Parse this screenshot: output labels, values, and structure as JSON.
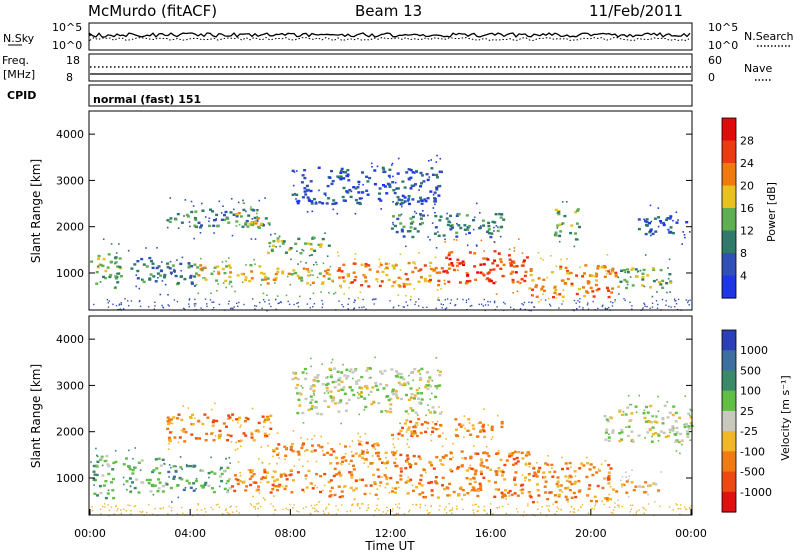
{
  "header": {
    "title": "McMurdo (fitACF)",
    "beam": "Beam 13",
    "date": "11/Feb/2011"
  },
  "top_panels": {
    "nsky": {
      "label": "N.Sky",
      "tick_top": "10^5",
      "tick_bottom": "10^0"
    },
    "nsearch": {
      "label": "N.Search",
      "tick_top": "10^5",
      "tick_bottom": "10^0"
    },
    "freq": {
      "label": "Freq.",
      "unit": "[MHz]",
      "tick_top": "18",
      "tick_bottom": "8"
    },
    "nave": {
      "label": "Nave",
      "tick_top": "60",
      "tick_bottom": "0"
    },
    "cpid": {
      "label": "CPID",
      "value": "normal (fast) 151"
    }
  },
  "chart_data": [
    {
      "type": "heatmap",
      "name": "power",
      "ylabel": "Slant Range [km]",
      "ylim": [
        200,
        4500
      ],
      "yticks": [
        "1000",
        "2000",
        "3000",
        "4000"
      ],
      "xlim": [
        0,
        24
      ],
      "colorbar": {
        "label": "Power [dB]",
        "ticks": [
          "4",
          "8",
          "12",
          "16",
          "20",
          "24",
          "28"
        ],
        "colors": [
          "#1e36e6",
          "#3050b8",
          "#2f7a6a",
          "#5fae52",
          "#e8c020",
          "#f07a10",
          "#ec3a12",
          "#e00a0a"
        ]
      },
      "bands": [
        {
          "t0": 0.0,
          "t1": 1.2,
          "r0": 700,
          "r1": 1500,
          "level": 3
        },
        {
          "t0": 1.5,
          "t1": 4.2,
          "r0": 780,
          "r1": 1350,
          "level": 2
        },
        {
          "t0": 4.2,
          "t1": 7.0,
          "r0": 800,
          "r1": 1200,
          "level": 4
        },
        {
          "t0": 7.0,
          "t1": 9.8,
          "r0": 760,
          "r1": 1120,
          "level": 4
        },
        {
          "t0": 9.8,
          "t1": 14.0,
          "r0": 700,
          "r1": 1250,
          "level": 5
        },
        {
          "t0": 14.0,
          "t1": 17.5,
          "r0": 780,
          "r1": 1500,
          "level": 6
        },
        {
          "t0": 17.5,
          "t1": 21.0,
          "r0": 500,
          "r1": 1200,
          "level": 5
        },
        {
          "t0": 21.0,
          "t1": 23.2,
          "r0": 700,
          "r1": 1150,
          "level": 3
        },
        {
          "t0": 3.0,
          "t1": 7.2,
          "r0": 2000,
          "r1": 2400,
          "level": 2
        },
        {
          "t0": 5.8,
          "t1": 6.9,
          "r0": 1950,
          "r1": 2350,
          "level": 4
        },
        {
          "t0": 7.0,
          "t1": 9.5,
          "r0": 1450,
          "r1": 1800,
          "level": 3
        },
        {
          "t0": 8.0,
          "t1": 14.0,
          "r0": 2500,
          "r1": 3300,
          "level": 1
        },
        {
          "t0": 12.0,
          "t1": 16.5,
          "r0": 1800,
          "r1": 2300,
          "level": 2
        },
        {
          "t0": 18.5,
          "t1": 19.5,
          "r0": 1750,
          "r1": 2400,
          "level": 3
        },
        {
          "t0": 21.8,
          "t1": 24.0,
          "r0": 1850,
          "r1": 2250,
          "level": 1
        }
      ]
    },
    {
      "type": "heatmap",
      "name": "velocity",
      "ylabel": "Slant Range [km]",
      "ylim": [
        200,
        4500
      ],
      "yticks": [
        "1000",
        "2000",
        "3000",
        "4000"
      ],
      "xlim": [
        0,
        24
      ],
      "xticks": [
        "00:00",
        "04:00",
        "08:00",
        "12:00",
        "16:00",
        "20:00",
        "00:00"
      ],
      "xlabel": "Time UT",
      "colorbar": {
        "label": "Velocity [m s⁻¹]",
        "ticks": [
          "1000",
          "500",
          "100",
          "25",
          "-25",
          "-100",
          "-500",
          "-1000"
        ],
        "colors": [
          "#2a3fb8",
          "#3f6ea0",
          "#3a8a6a",
          "#62bf45",
          "#c8c8be",
          "#f2b62a",
          "#f07a14",
          "#ec4a12",
          "#e01010"
        ]
      },
      "bands": [
        {
          "t0": 0.0,
          "t1": 1.0,
          "r0": 500,
          "r1": 1500,
          "level": 3
        },
        {
          "t0": 1.3,
          "t1": 3.0,
          "r0": 700,
          "r1": 1450,
          "level": 3
        },
        {
          "t0": 3.0,
          "t1": 4.2,
          "r0": 700,
          "r1": 1300,
          "level": 2
        },
        {
          "t0": 4.2,
          "t1": 5.6,
          "r0": 720,
          "r1": 1250,
          "level": 3
        },
        {
          "t0": 5.6,
          "t1": 9.5,
          "r0": 700,
          "r1": 1200,
          "level": 6
        },
        {
          "t0": 9.5,
          "t1": 17.5,
          "r0": 600,
          "r1": 1600,
          "level": 6
        },
        {
          "t0": 17.5,
          "t1": 20.8,
          "r0": 500,
          "r1": 1350,
          "level": 6
        },
        {
          "t0": 20.8,
          "t1": 22.8,
          "r0": 700,
          "r1": 1000,
          "level": 5
        },
        {
          "t0": 3.0,
          "t1": 7.2,
          "r0": 1800,
          "r1": 2400,
          "level": 6
        },
        {
          "t0": 7.2,
          "t1": 11.5,
          "r0": 1500,
          "r1": 1800,
          "level": 6
        },
        {
          "t0": 8.0,
          "t1": 14.0,
          "r0": 2400,
          "r1": 3400,
          "level": 4
        },
        {
          "t0": 12.0,
          "t1": 16.5,
          "r0": 1900,
          "r1": 2300,
          "level": 6
        },
        {
          "t0": 20.5,
          "t1": 24.0,
          "r0": 1800,
          "r1": 2600,
          "level": 4
        }
      ]
    }
  ]
}
